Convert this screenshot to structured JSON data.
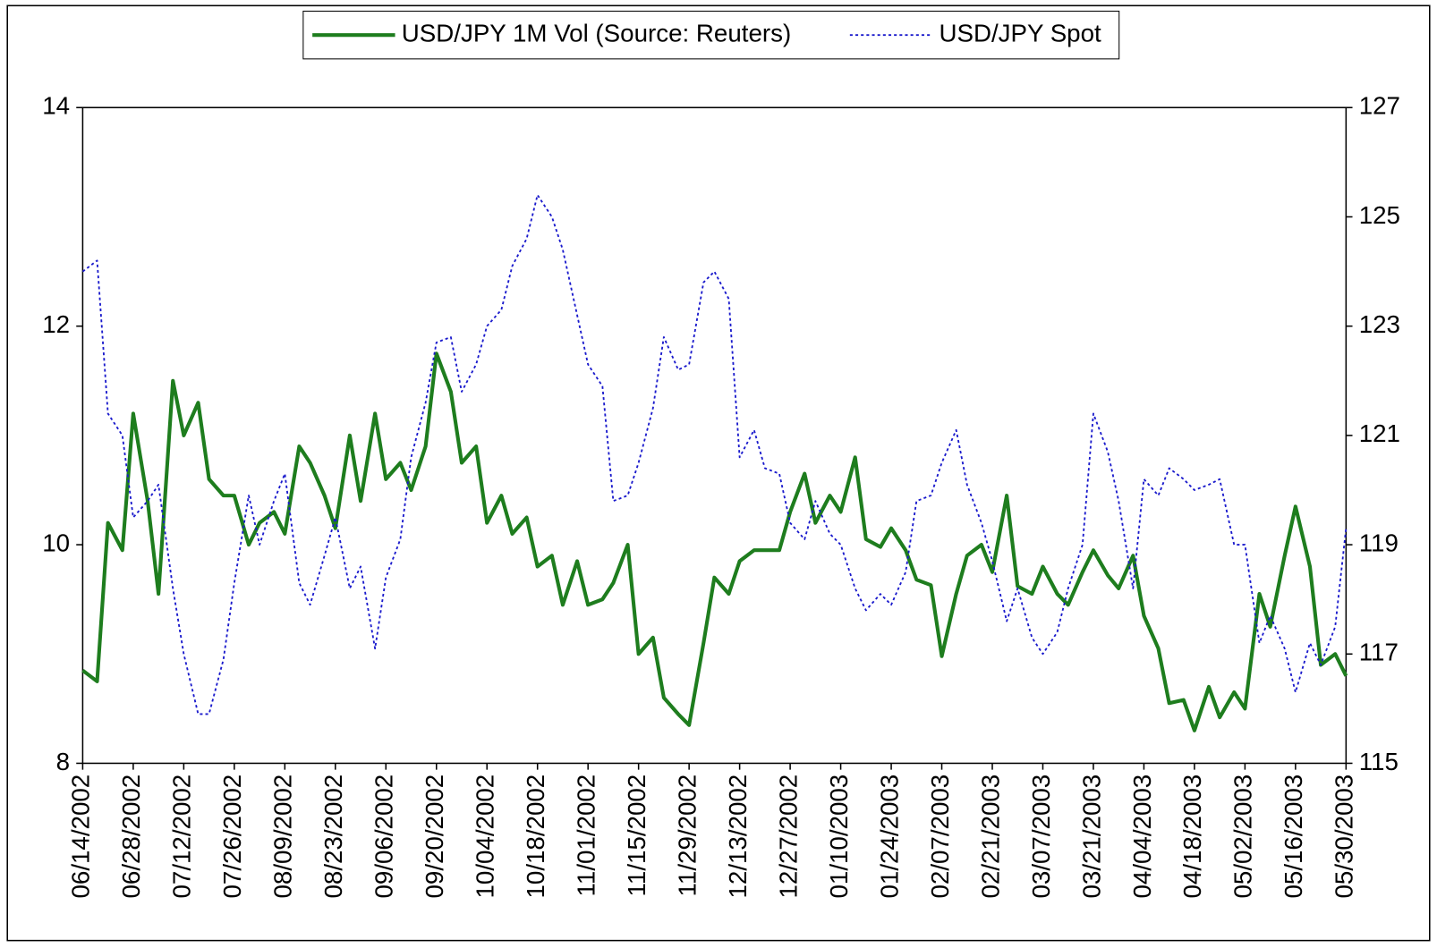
{
  "chart_data": {
    "type": "line",
    "x": [
      "06/14/2002",
      "06/18/2002",
      "06/21/2002",
      "06/25/2002",
      "06/28/2002",
      "07/02/2002",
      "07/05/2002",
      "07/09/2002",
      "07/12/2002",
      "07/16/2002",
      "07/19/2002",
      "07/23/2002",
      "07/26/2002",
      "07/30/2002",
      "08/02/2002",
      "08/06/2002",
      "08/09/2002",
      "08/13/2002",
      "08/16/2002",
      "08/20/2002",
      "08/23/2002",
      "08/27/2002",
      "08/30/2002",
      "09/03/2002",
      "09/06/2002",
      "09/10/2002",
      "09/13/2002",
      "09/17/2002",
      "09/20/2002",
      "09/24/2002",
      "09/27/2002",
      "10/01/2002",
      "10/04/2002",
      "10/08/2002",
      "10/11/2002",
      "10/15/2002",
      "10/18/2002",
      "10/22/2002",
      "10/25/2002",
      "10/29/2002",
      "11/01/2002",
      "11/05/2002",
      "11/08/2002",
      "11/12/2002",
      "11/15/2002",
      "11/19/2002",
      "11/22/2002",
      "11/26/2002",
      "11/29/2002",
      "12/03/2002",
      "12/06/2002",
      "12/10/2002",
      "12/13/2002",
      "12/17/2002",
      "12/20/2002",
      "12/24/2002",
      "12/27/2002",
      "12/31/2002",
      "01/03/2003",
      "01/07/2003",
      "01/10/2003",
      "01/14/2003",
      "01/17/2003",
      "01/21/2003",
      "01/24/2003",
      "01/28/2003",
      "01/31/2003",
      "02/04/2003",
      "02/07/2003",
      "02/11/2003",
      "02/14/2003",
      "02/18/2003",
      "02/21/2003",
      "02/25/2003",
      "02/28/2003",
      "03/04/2003",
      "03/07/2003",
      "03/11/2003",
      "03/14/2003",
      "03/18/2003",
      "03/21/2003",
      "03/25/2003",
      "03/28/2003",
      "04/01/2003",
      "04/04/2003",
      "04/08/2003",
      "04/11/2003",
      "04/15/2003",
      "04/18/2003",
      "04/22/2003",
      "04/25/2003",
      "04/29/2003",
      "05/02/2003",
      "05/06/2003",
      "05/09/2003",
      "05/13/2003",
      "05/16/2003",
      "05/20/2003",
      "05/23/2003",
      "05/27/2003",
      "05/30/2003"
    ],
    "series": [
      {
        "name": "USD/JPY 1M Vol (Source: Reuters)",
        "color": "#1e7d1e",
        "style": "solid",
        "axis": "y",
        "values": [
          8.85,
          8.75,
          10.2,
          9.95,
          11.2,
          10.4,
          9.55,
          11.5,
          11.0,
          11.3,
          10.6,
          10.45,
          10.45,
          10.0,
          10.2,
          10.3,
          10.1,
          10.9,
          10.75,
          10.45,
          10.15,
          11.0,
          10.4,
          11.2,
          10.6,
          10.75,
          10.5,
          10.9,
          11.75,
          11.4,
          10.75,
          10.9,
          10.2,
          10.45,
          10.1,
          10.25,
          9.8,
          9.9,
          9.45,
          9.85,
          9.45,
          9.5,
          9.65,
          10.0,
          9.0,
          9.15,
          8.6,
          8.45,
          8.35,
          9.1,
          9.7,
          9.55,
          9.85,
          9.95,
          9.95,
          9.95,
          10.3,
          10.65,
          10.2,
          10.45,
          10.3,
          10.8,
          10.05,
          9.98,
          10.15,
          9.95,
          9.68,
          9.63,
          8.98,
          9.55,
          9.9,
          10.0,
          9.75,
          10.45,
          9.62,
          9.55,
          9.8,
          9.55,
          9.45,
          9.75,
          9.95,
          9.72,
          9.6,
          9.9,
          9.35,
          9.05,
          8.55,
          8.58,
          8.3,
          8.7,
          8.42,
          8.65,
          8.5,
          9.55,
          9.25,
          9.9,
          10.35,
          9.8,
          8.9,
          9.0,
          8.8
        ]
      },
      {
        "name": "USD/JPY Spot",
        "color": "#1a1acc",
        "style": "dotted",
        "axis": "y2",
        "values": [
          124.0,
          124.2,
          121.4,
          121.0,
          119.5,
          119.8,
          120.1,
          118.2,
          117.0,
          115.9,
          115.9,
          116.9,
          118.3,
          119.9,
          119.0,
          119.8,
          120.3,
          118.3,
          117.9,
          118.8,
          119.5,
          118.2,
          118.6,
          117.1,
          118.4,
          119.1,
          120.6,
          121.6,
          122.7,
          122.8,
          121.8,
          122.3,
          123.0,
          123.3,
          124.1,
          124.6,
          125.4,
          125.0,
          124.4,
          123.2,
          122.3,
          121.9,
          119.8,
          119.9,
          120.5,
          121.5,
          122.8,
          122.2,
          122.3,
          123.8,
          124.0,
          123.5,
          120.6,
          121.1,
          120.4,
          120.3,
          119.4,
          119.1,
          119.8,
          119.2,
          119.0,
          118.2,
          117.8,
          118.1,
          117.9,
          118.5,
          119.8,
          119.9,
          120.5,
          121.1,
          120.1,
          119.4,
          118.7,
          117.6,
          118.2,
          117.3,
          117.0,
          117.4,
          118.2,
          119.0,
          121.4,
          120.7,
          119.8,
          118.2,
          120.2,
          119.9,
          120.4,
          120.2,
          120.0,
          120.1,
          120.2,
          119.0,
          119.0,
          117.2,
          117.7,
          117.1,
          116.3,
          117.2,
          116.8,
          117.5,
          119.3
        ]
      }
    ],
    "xlim": [
      "06/14/2002",
      "05/30/2003"
    ],
    "xticks": [
      "06/14/2002",
      "06/28/2002",
      "07/12/2002",
      "07/26/2002",
      "08/09/2002",
      "08/23/2002",
      "09/06/2002",
      "09/20/2002",
      "10/04/2002",
      "10/18/2002",
      "11/01/2002",
      "11/15/2002",
      "11/29/2002",
      "12/13/2002",
      "12/27/2002",
      "01/10/2003",
      "01/24/2003",
      "02/07/2003",
      "02/21/2003",
      "03/07/2003",
      "03/21/2003",
      "04/04/2003",
      "04/18/2003",
      "05/02/2003",
      "05/16/2003",
      "05/30/2003"
    ],
    "ylim": [
      8,
      14
    ],
    "yticks": [
      8,
      10,
      12,
      14
    ],
    "y2lim": [
      115,
      127
    ],
    "y2ticks": [
      115,
      117,
      119,
      121,
      123,
      125,
      127
    ],
    "grid": false,
    "legend": "top"
  }
}
